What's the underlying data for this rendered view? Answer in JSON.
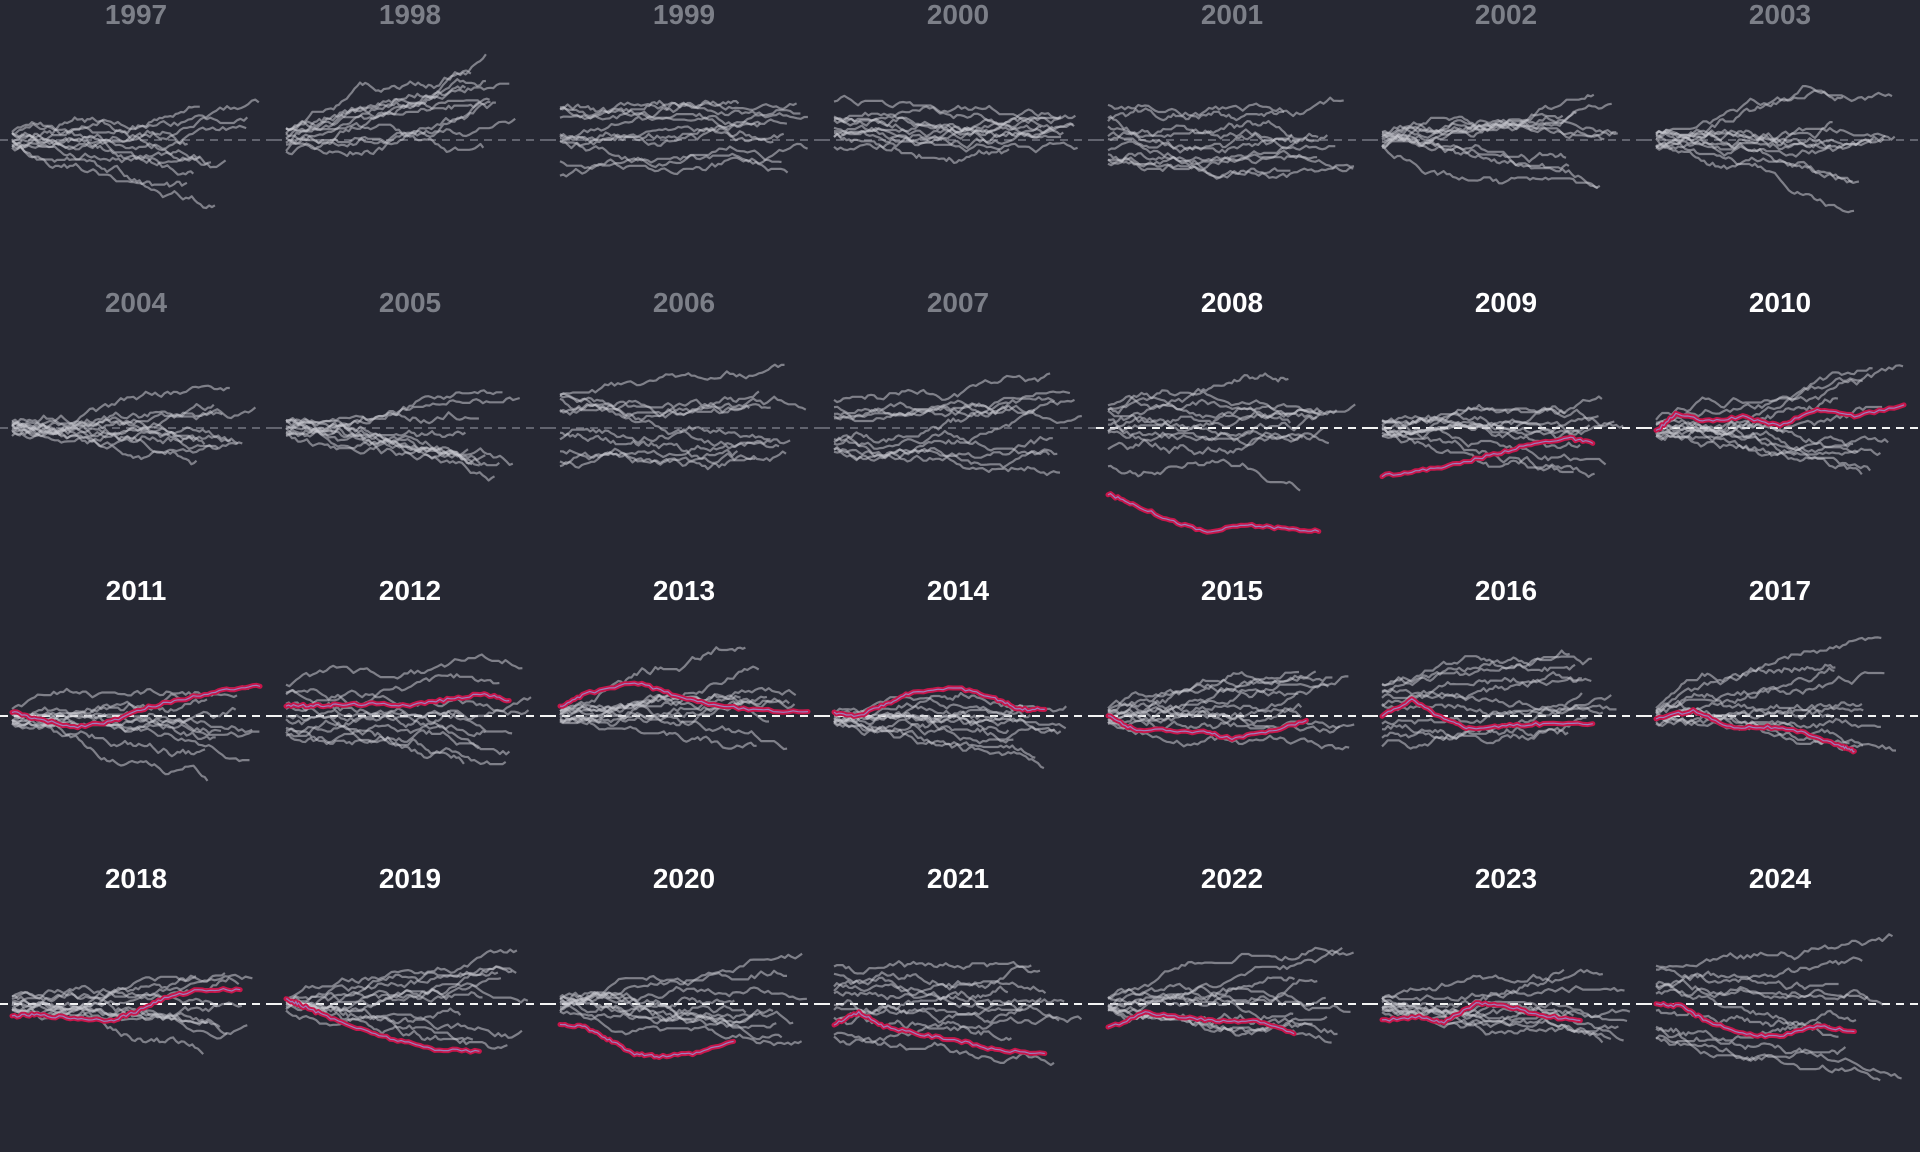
{
  "colors": {
    "background": "#262833",
    "title_muted": "#7c7f88",
    "title_highlight": "#ffffff",
    "context_line": "#c9c9cf",
    "highlight_line": "#c8164a",
    "baseline_muted": "#9a9ca6",
    "baseline_highlight": "#ffffff"
  },
  "chart_data": {
    "type": "line",
    "layout": "small-multiples",
    "columns": 7,
    "x_range": [
      0,
      1
    ],
    "y_range": [
      -1,
      1
    ],
    "baseline_y": 0,
    "panels": [
      {
        "label": "1997",
        "highlighted": false,
        "seed": 11,
        "mode": "fan",
        "highlight": null
      },
      {
        "label": "1998",
        "highlighted": false,
        "seed": 12,
        "mode": "fan-wide",
        "highlight": null
      },
      {
        "label": "1999",
        "highlighted": false,
        "seed": 13,
        "mode": "parallel",
        "highlight": null
      },
      {
        "label": "2000",
        "highlighted": false,
        "seed": 14,
        "mode": "parallel",
        "highlight": null
      },
      {
        "label": "2001",
        "highlighted": false,
        "seed": 15,
        "mode": "parallel",
        "highlight": null
      },
      {
        "label": "2002",
        "highlighted": false,
        "seed": 16,
        "mode": "fan",
        "highlight": null
      },
      {
        "label": "2003",
        "highlighted": false,
        "seed": 17,
        "mode": "fan",
        "highlight": null
      },
      {
        "label": "2004",
        "highlighted": false,
        "seed": 21,
        "mode": "fan",
        "highlight": null
      },
      {
        "label": "2005",
        "highlighted": false,
        "seed": 22,
        "mode": "fan",
        "highlight": null
      },
      {
        "label": "2006",
        "highlighted": false,
        "seed": 23,
        "mode": "parallel",
        "highlight": null
      },
      {
        "label": "2007",
        "highlighted": false,
        "seed": 24,
        "mode": "parallel",
        "highlight": null
      },
      {
        "label": "2008",
        "highlighted": true,
        "seed": 25,
        "mode": "parallel",
        "highlight": {
          "x": [
            0,
            0.1,
            0.25,
            0.4,
            0.55,
            0.7,
            0.85
          ],
          "y": [
            -0.6,
            -0.69,
            -0.84,
            -0.95,
            -0.88,
            -0.91,
            -0.94
          ]
        }
      },
      {
        "label": "2009",
        "highlighted": true,
        "seed": 26,
        "mode": "fan",
        "highlight": {
          "x": [
            0,
            0.15,
            0.3,
            0.45,
            0.6,
            0.75,
            0.85
          ],
          "y": [
            -0.43,
            -0.39,
            -0.33,
            -0.24,
            -0.15,
            -0.09,
            -0.14
          ]
        }
      },
      {
        "label": "2010",
        "highlighted": true,
        "seed": 27,
        "mode": "fan",
        "highlight": {
          "x": [
            0,
            0.08,
            0.2,
            0.35,
            0.5,
            0.65,
            0.8,
            1.0
          ],
          "y": [
            -0.03,
            0.13,
            0.06,
            0.1,
            0.02,
            0.17,
            0.11,
            0.21
          ]
        }
      },
      {
        "label": "2011",
        "highlighted": true,
        "seed": 31,
        "mode": "fan",
        "highlight": {
          "x": [
            0,
            0.1,
            0.25,
            0.4,
            0.55,
            0.7,
            0.85,
            1.0
          ],
          "y": [
            0.04,
            -0.03,
            -0.1,
            -0.05,
            0.08,
            0.16,
            0.24,
            0.27
          ]
        }
      },
      {
        "label": "2012",
        "highlighted": true,
        "seed": 32,
        "mode": "parallel",
        "highlight": {
          "x": [
            0,
            0.1,
            0.2,
            0.35,
            0.5,
            0.65,
            0.8,
            0.9
          ],
          "y": [
            0.1,
            0.09,
            0.1,
            0.11,
            0.1,
            0.15,
            0.2,
            0.14
          ]
        }
      },
      {
        "label": "2013",
        "highlighted": true,
        "seed": 33,
        "mode": "fan",
        "highlight": {
          "x": [
            0,
            0.1,
            0.3,
            0.45,
            0.6,
            0.8,
            1.0
          ],
          "y": [
            0.08,
            0.2,
            0.31,
            0.2,
            0.11,
            0.05,
            0.04
          ]
        }
      },
      {
        "label": "2014",
        "highlighted": true,
        "seed": 34,
        "mode": "fan",
        "highlight": {
          "x": [
            0,
            0.1,
            0.2,
            0.3,
            0.5,
            0.65,
            0.75,
            0.85
          ],
          "y": [
            0.03,
            0.0,
            0.1,
            0.2,
            0.26,
            0.16,
            0.06,
            0.06
          ]
        }
      },
      {
        "label": "2015",
        "highlighted": true,
        "seed": 35,
        "mode": "fan",
        "highlight": {
          "x": [
            0,
            0.1,
            0.25,
            0.4,
            0.5,
            0.65,
            0.8
          ],
          "y": [
            0.0,
            -0.12,
            -0.13,
            -0.15,
            -0.21,
            -0.14,
            -0.04
          ]
        }
      },
      {
        "label": "2016",
        "highlighted": true,
        "seed": 36,
        "mode": "parallel",
        "highlight": {
          "x": [
            0,
            0.12,
            0.25,
            0.35,
            0.5,
            0.65,
            0.85
          ],
          "y": [
            0.0,
            0.15,
            -0.03,
            -0.11,
            -0.09,
            -0.07,
            -0.07
          ]
        }
      },
      {
        "label": "2017",
        "highlighted": true,
        "seed": 37,
        "mode": "fan",
        "highlight": {
          "x": [
            0,
            0.15,
            0.3,
            0.45,
            0.6,
            0.75,
            0.8
          ],
          "y": [
            -0.02,
            0.05,
            -0.1,
            -0.1,
            -0.15,
            -0.28,
            -0.32
          ]
        }
      },
      {
        "label": "2018",
        "highlighted": true,
        "seed": 41,
        "mode": "fan",
        "highlight": {
          "x": [
            0,
            0.1,
            0.25,
            0.4,
            0.5,
            0.6,
            0.75,
            0.92
          ],
          "y": [
            -0.11,
            -0.1,
            -0.13,
            -0.15,
            -0.07,
            0.04,
            0.13,
            0.13
          ]
        }
      },
      {
        "label": "2019",
        "highlighted": true,
        "seed": 42,
        "mode": "fan",
        "highlight": {
          "x": [
            0,
            0.05,
            0.15,
            0.3,
            0.45,
            0.6,
            0.78
          ],
          "y": [
            0.05,
            0.0,
            -0.1,
            -0.23,
            -0.33,
            -0.41,
            -0.43
          ]
        }
      },
      {
        "label": "2020",
        "highlighted": true,
        "seed": 43,
        "mode": "fan",
        "highlight": {
          "x": [
            0,
            0.1,
            0.2,
            0.3,
            0.4,
            0.55,
            0.7
          ],
          "y": [
            -0.18,
            -0.21,
            -0.33,
            -0.45,
            -0.48,
            -0.45,
            -0.34
          ]
        }
      },
      {
        "label": "2021",
        "highlighted": true,
        "seed": 44,
        "mode": "parallel",
        "highlight": {
          "x": [
            0,
            0.1,
            0.2,
            0.35,
            0.5,
            0.65,
            0.85
          ],
          "y": [
            -0.18,
            -0.08,
            -0.2,
            -0.28,
            -0.33,
            -0.42,
            -0.45
          ]
        }
      },
      {
        "label": "2022",
        "highlighted": true,
        "seed": 45,
        "mode": "fan",
        "highlight": {
          "x": [
            0,
            0.15,
            0.3,
            0.45,
            0.6,
            0.75
          ],
          "y": [
            -0.22,
            -0.08,
            -0.12,
            -0.16,
            -0.15,
            -0.27
          ]
        }
      },
      {
        "label": "2023",
        "highlighted": true,
        "seed": 46,
        "mode": "fan",
        "highlight": {
          "x": [
            0,
            0.15,
            0.25,
            0.38,
            0.5,
            0.65,
            0.8
          ],
          "y": [
            -0.15,
            -0.12,
            -0.17,
            0.01,
            -0.02,
            -0.11,
            -0.15
          ]
        }
      },
      {
        "label": "2024",
        "highlighted": true,
        "seed": 47,
        "mode": "parallel",
        "highlight": {
          "x": [
            0,
            0.1,
            0.2,
            0.35,
            0.5,
            0.65,
            0.8
          ],
          "y": [
            0.0,
            -0.02,
            -0.15,
            -0.27,
            -0.3,
            -0.2,
            -0.25
          ]
        }
      }
    ]
  }
}
